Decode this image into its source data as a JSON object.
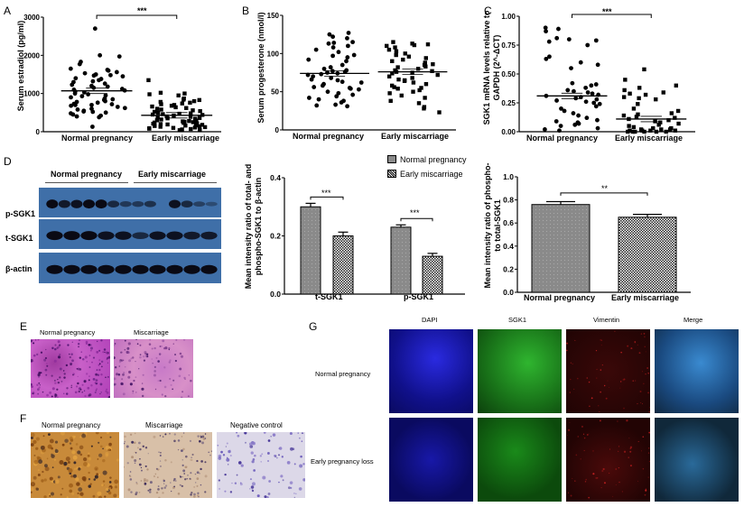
{
  "panels": {
    "A": {
      "letter": "A"
    },
    "B": {
      "letter": "B"
    },
    "C": {
      "letter": "C"
    },
    "D": {
      "letter": "D"
    },
    "E": {
      "letter": "E"
    },
    "F": {
      "letter": "F"
    },
    "G": {
      "letter": "G"
    }
  },
  "chart_data": [
    {
      "id": "A",
      "type": "scatter",
      "title": "",
      "ylabel": "Serum estradiol (pg/ml)",
      "xlabel": "",
      "categories": [
        "Normal pregnancy",
        "Early miscarriage"
      ],
      "yticks": [
        "0",
        "1000",
        "2000",
        "3000"
      ],
      "ylim": [
        0,
        3000
      ],
      "series": [
        {
          "name": "Normal pregnancy",
          "marker": "circle",
          "mean": 1070,
          "values": [
            2700,
            2000,
            1970,
            1830,
            1770,
            1650,
            1620,
            1600,
            1560,
            1530,
            1500,
            1480,
            1470,
            1450,
            1400,
            1380,
            1350,
            1320,
            1300,
            1260,
            1230,
            1200,
            1180,
            1150,
            1120,
            1100,
            1080,
            1050,
            1030,
            1000,
            980,
            950,
            930,
            900,
            870,
            850,
            830,
            800,
            780,
            760,
            730,
            720,
            700,
            700,
            680,
            650,
            620,
            600,
            580,
            550,
            530,
            520,
            500,
            480,
            450,
            420,
            400,
            380,
            130
          ]
        },
        {
          "name": "Early miscarriage",
          "marker": "square",
          "mean": 430,
          "values": [
            1350,
            1020,
            1000,
            980,
            950,
            870,
            840,
            830,
            800,
            780,
            760,
            740,
            720,
            700,
            680,
            660,
            640,
            620,
            600,
            580,
            560,
            540,
            520,
            500,
            480,
            470,
            460,
            450,
            440,
            420,
            400,
            390,
            380,
            360,
            350,
            340,
            320,
            300,
            290,
            280,
            270,
            260,
            250,
            240,
            230,
            220,
            210,
            200,
            190,
            180,
            170,
            160,
            150,
            140,
            130,
            120,
            110,
            100,
            90,
            80,
            70,
            60,
            50,
            40
          ]
        }
      ],
      "annotations": [
        {
          "text": "***",
          "between": [
            "Normal pregnancy",
            "Early miscarriage"
          ]
        }
      ]
    },
    {
      "id": "B",
      "type": "scatter",
      "ylabel": "Serum progesterone (nmol/l)",
      "categories": [
        "Normal pregnancy",
        "Early miscarriage"
      ],
      "yticks": [
        "0",
        "50",
        "100",
        "150"
      ],
      "ylim": [
        0,
        150
      ],
      "series": [
        {
          "name": "Normal pregnancy",
          "marker": "circle",
          "mean": 74,
          "values": [
            127,
            125,
            122,
            120,
            115,
            114,
            113,
            110,
            108,
            105,
            102,
            98,
            97,
            95,
            92,
            90,
            85,
            82,
            80,
            78,
            77,
            76,
            75,
            74,
            73,
            72,
            70,
            68,
            66,
            65,
            63,
            62,
            60,
            58,
            56,
            55,
            54,
            53,
            50,
            48,
            46,
            44,
            42,
            40,
            38,
            36,
            33,
            32,
            31
          ]
        },
        {
          "name": "Early miscarriage",
          "marker": "square",
          "mean": 76,
          "values": [
            115,
            113,
            112,
            111,
            110,
            108,
            105,
            103,
            100,
            98,
            96,
            94,
            92,
            90,
            88,
            86,
            85,
            83,
            82,
            80,
            78,
            77,
            76,
            75,
            74,
            72,
            70,
            68,
            66,
            65,
            64,
            62,
            60,
            58,
            56,
            55,
            54,
            52,
            50,
            48,
            45,
            42,
            38,
            35,
            30,
            28,
            23
          ]
        }
      ]
    },
    {
      "id": "C",
      "type": "scatter",
      "ylabel": "SGK1 mRNA levels relative to GAPDH (2^-ΔCT)",
      "categories": [
        "Normal pregnancy",
        "Early miscarriage"
      ],
      "yticks": [
        "0.00",
        "0.25",
        "0.50",
        "0.75",
        "1.00"
      ],
      "ylim": [
        0,
        1.0
      ],
      "series": [
        {
          "name": "Normal pregnancy",
          "marker": "circle",
          "mean": 0.31,
          "values": [
            0.9,
            0.89,
            0.87,
            0.81,
            0.8,
            0.79,
            0.78,
            0.75,
            0.65,
            0.63,
            0.6,
            0.58,
            0.55,
            0.42,
            0.41,
            0.4,
            0.38,
            0.36,
            0.35,
            0.34,
            0.33,
            0.32,
            0.31,
            0.3,
            0.29,
            0.28,
            0.27,
            0.26,
            0.25,
            0.24,
            0.22,
            0.2,
            0.18,
            0.16,
            0.14,
            0.12,
            0.1,
            0.09,
            0.08,
            0.07,
            0.06,
            0.05,
            0.03,
            0.02,
            0.01
          ]
        },
        {
          "name": "Early miscarriage",
          "marker": "square",
          "mean": 0.11,
          "values": [
            0.54,
            0.45,
            0.4,
            0.38,
            0.36,
            0.34,
            0.33,
            0.32,
            0.3,
            0.29,
            0.28,
            0.24,
            0.2,
            0.18,
            0.16,
            0.15,
            0.14,
            0.13,
            0.12,
            0.11,
            0.1,
            0.09,
            0.08,
            0.07,
            0.06,
            0.05,
            0.04,
            0.03,
            0.03,
            0.02,
            0.02,
            0.02,
            0.01,
            0.01,
            0.01,
            0.01,
            0.0,
            0.0,
            0.0,
            0.0,
            0.0,
            0.0
          ]
        }
      ],
      "annotations": [
        {
          "text": "***",
          "between": [
            "Normal pregnancy",
            "Early miscarriage"
          ]
        }
      ]
    },
    {
      "id": "D-middle",
      "type": "bar",
      "ylabel": "Mean intensity ratio of total- and phospho-SGK1 to β-actin",
      "categories": [
        "t-SGK1",
        "p-SGK1"
      ],
      "yticks": [
        "0.0",
        "0.2",
        "0.4"
      ],
      "ylim": [
        0,
        0.4
      ],
      "legend": [
        "Normal pregnancy",
        "Early miscarriage"
      ],
      "legend_position": "top-right",
      "series": [
        {
          "name": "Normal pregnancy",
          "values": [
            0.3,
            0.23
          ],
          "errors": [
            0.012,
            0.008
          ]
        },
        {
          "name": "Early miscarriage",
          "values": [
            0.2,
            0.13
          ],
          "errors": [
            0.013,
            0.01
          ]
        }
      ],
      "annotations": [
        {
          "text": "***",
          "category": "t-SGK1"
        },
        {
          "text": "***",
          "category": "p-SGK1"
        }
      ]
    },
    {
      "id": "D-right",
      "type": "bar",
      "ylabel": "Mean intensity ratio of phospho- to total-SGK1",
      "categories": [
        "Normal pregnancy",
        "Early miscarriage"
      ],
      "yticks": [
        "0.0",
        "0.2",
        "0.4",
        "0.6",
        "0.8",
        "1.0"
      ],
      "ylim": [
        0,
        1.0
      ],
      "series": [
        {
          "name": "ratio",
          "values": [
            0.76,
            0.65
          ],
          "errors": [
            0.025,
            0.025
          ]
        }
      ],
      "annotations": [
        {
          "text": "**",
          "between": [
            "Normal pregnancy",
            "Early miscarriage"
          ]
        }
      ]
    }
  ],
  "western": {
    "group_labels": [
      "Normal pregnancy",
      "Early miscarriage"
    ],
    "rows": [
      "p-SGK1",
      "t-SGK1",
      "β-actin"
    ]
  },
  "histology_E": {
    "labels": [
      "Normal pregnancy",
      "Miscarriage"
    ]
  },
  "ihc_F": {
    "labels": [
      "Normal pregnancy",
      "Miscarriage",
      "Negative control"
    ]
  },
  "if_G": {
    "columns": [
      "DAPI",
      "SGK1",
      "Vimentin",
      "Merge"
    ],
    "rows": [
      "Normal pregnancy",
      "Early pregnancy loss"
    ]
  },
  "colors": {
    "dapi": "#1a1ad0",
    "sgk1": "#1a9a1a",
    "vimentin": "#7a0a0a",
    "blot_bg": "#3f6fa8",
    "bar_gray": "#8a8a8a"
  }
}
